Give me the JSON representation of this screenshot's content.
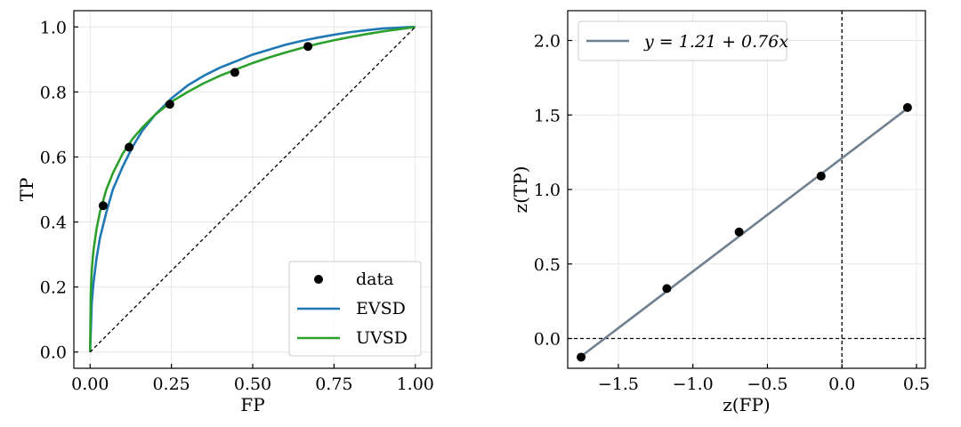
{
  "chart_data": [
    {
      "type": "line",
      "xlabel": "FP",
      "ylabel": "TP",
      "xlim": [
        -0.05,
        1.05
      ],
      "ylim": [
        -0.05,
        1.05
      ],
      "xticks": [
        0.0,
        0.25,
        0.5,
        0.75,
        1.0
      ],
      "xtick_labels": [
        "0.00",
        "0.25",
        "0.50",
        "0.75",
        "1.00"
      ],
      "yticks": [
        0.0,
        0.2,
        0.4,
        0.6,
        0.8,
        1.0
      ],
      "ytick_labels": [
        "0.0",
        "0.2",
        "0.4",
        "0.6",
        "0.8",
        "1.0"
      ],
      "grid": true,
      "legend_position": "bottom-right",
      "data": {
        "name": "data",
        "color": "#000000",
        "x": [
          0.04,
          0.12,
          0.245,
          0.445,
          0.67
        ],
        "y": [
          0.45,
          0.63,
          0.762,
          0.86,
          0.94
        ]
      },
      "series": [
        {
          "name": "EVSD",
          "color": "#1f77b4",
          "x": [
            0.0,
            0.005,
            0.01,
            0.02,
            0.03,
            0.05,
            0.07,
            0.1,
            0.13,
            0.16,
            0.2,
            0.25,
            0.3,
            0.35,
            0.4,
            0.45,
            0.5,
            0.55,
            0.6,
            0.65,
            0.7,
            0.75,
            0.8,
            0.85,
            0.9,
            0.95,
            0.98,
            1.0
          ],
          "y": [
            0.0,
            0.15,
            0.21,
            0.29,
            0.35,
            0.43,
            0.5,
            0.57,
            0.63,
            0.68,
            0.73,
            0.78,
            0.82,
            0.85,
            0.875,
            0.895,
            0.915,
            0.93,
            0.945,
            0.957,
            0.967,
            0.976,
            0.984,
            0.99,
            0.995,
            0.998,
            0.9995,
            1.0
          ]
        },
        {
          "name": "UVSD",
          "color": "#2ca02c",
          "x": [
            0.0,
            0.002,
            0.005,
            0.01,
            0.02,
            0.03,
            0.05,
            0.07,
            0.1,
            0.13,
            0.16,
            0.2,
            0.25,
            0.3,
            0.35,
            0.4,
            0.45,
            0.5,
            0.55,
            0.6,
            0.65,
            0.7,
            0.75,
            0.8,
            0.85,
            0.9,
            0.95,
            0.98,
            1.0
          ],
          "y": [
            0.0,
            0.18,
            0.25,
            0.31,
            0.38,
            0.43,
            0.5,
            0.55,
            0.61,
            0.655,
            0.69,
            0.73,
            0.77,
            0.8,
            0.827,
            0.85,
            0.87,
            0.889,
            0.906,
            0.921,
            0.935,
            0.948,
            0.959,
            0.969,
            0.978,
            0.986,
            0.993,
            0.997,
            1.0
          ]
        },
        {
          "name": "",
          "color": "#000000",
          "style": "dashed",
          "x": [
            0.0,
            1.0
          ],
          "y": [
            0.0,
            1.0
          ]
        }
      ]
    },
    {
      "type": "scatter",
      "xlabel": "z(FP)",
      "ylabel": "z(TP)",
      "xlim": [
        -1.84,
        0.56
      ],
      "ylim": [
        -0.2,
        2.2
      ],
      "xticks": [
        -1.5,
        -1.0,
        -0.5,
        0.0,
        0.5
      ],
      "xtick_labels": [
        "−1.5",
        "−1.0",
        "−0.5",
        "0.0",
        "0.5"
      ],
      "yticks": [
        0.0,
        0.5,
        1.0,
        1.5,
        2.0
      ],
      "ytick_labels": [
        "0.0",
        "0.5",
        "1.0",
        "1.5",
        "2.0"
      ],
      "grid": true,
      "legend_position": "top-left",
      "data": {
        "color": "#000000",
        "x": [
          -1.75,
          -1.175,
          -0.69,
          -0.14,
          0.44
        ],
        "y": [
          -0.125,
          0.335,
          0.715,
          1.09,
          1.55
        ]
      },
      "fit": {
        "name": "y = 1.21 + 0.76x",
        "color": "#708090",
        "intercept": 1.21,
        "slope": 0.76,
        "x_range": [
          -1.75,
          0.44
        ]
      },
      "reference_lines": {
        "x0": 0.0,
        "y0": 0.0,
        "color": "#000000",
        "style": "dashed"
      }
    }
  ]
}
